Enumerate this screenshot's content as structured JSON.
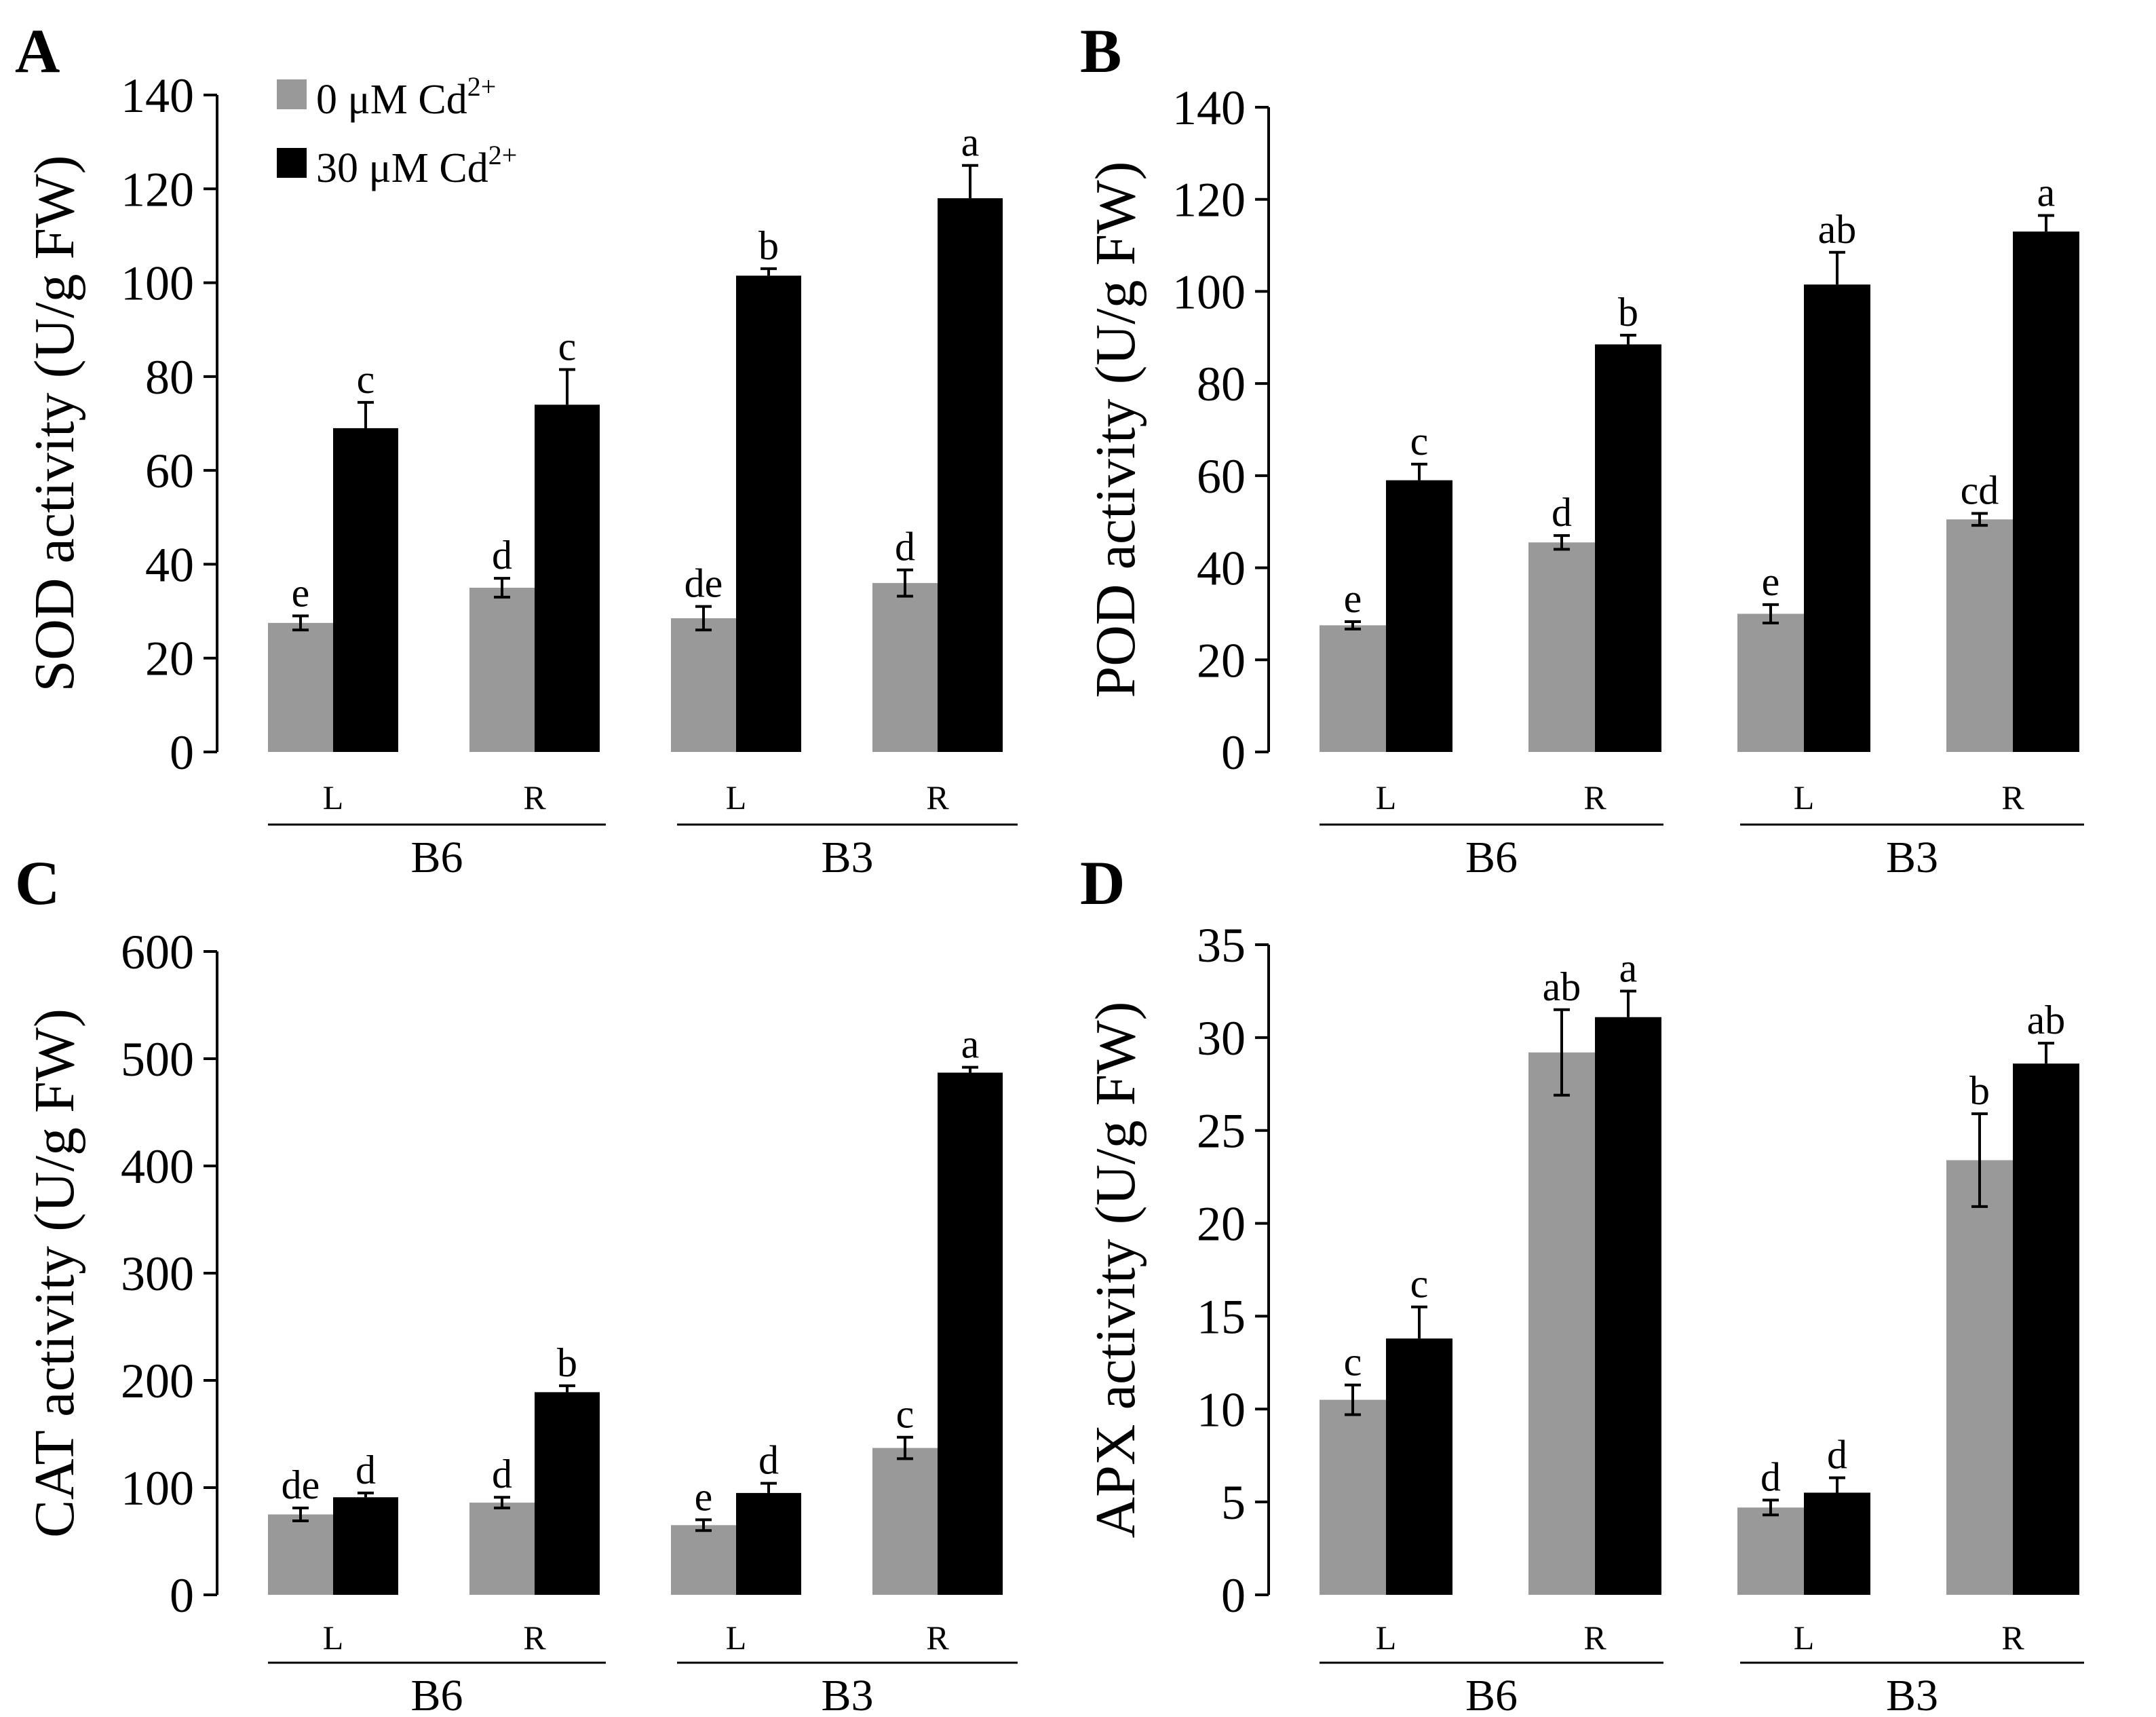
{
  "legend": {
    "items": [
      {
        "text": "0 μM Cd",
        "sup": "2+",
        "color": "#999999"
      },
      {
        "text": "30 μM Cd",
        "sup": "2+",
        "color": "#000000"
      }
    ]
  },
  "chart_data": [
    {
      "panel": "A",
      "type": "bar",
      "ylabel": "SOD activity (U/g FW)",
      "ylim": [
        0,
        140
      ],
      "yticks": [
        0,
        20,
        40,
        60,
        80,
        100,
        120,
        140
      ],
      "categories": [
        "L",
        "R",
        "L",
        "R"
      ],
      "groups": [
        {
          "label": "B6",
          "categories": [
            0,
            1
          ]
        },
        {
          "label": "B3",
          "categories": [
            2,
            3
          ]
        }
      ],
      "series": [
        {
          "name": "0 μM Cd2+",
          "color": "#999999",
          "values": [
            27.5,
            35,
            28.5,
            36
          ],
          "errors": [
            1.5,
            2,
            2.5,
            2.8
          ],
          "labels": [
            "e",
            "d",
            "de",
            "d"
          ]
        },
        {
          "name": "30 μM Cd2+",
          "color": "#000000",
          "values": [
            69,
            74,
            101.5,
            118
          ],
          "errors": [
            5.5,
            7.5,
            1.5,
            7
          ],
          "labels": [
            "c",
            "c",
            "b",
            "a"
          ]
        }
      ]
    },
    {
      "panel": "B",
      "type": "bar",
      "ylabel": "POD activity (U/g FW)",
      "ylim": [
        0,
        140
      ],
      "yticks": [
        0,
        20,
        40,
        60,
        80,
        100,
        120,
        140
      ],
      "categories": [
        "L",
        "R",
        "L",
        "R"
      ],
      "groups": [
        {
          "label": "B6",
          "categories": [
            0,
            1
          ]
        },
        {
          "label": "B3",
          "categories": [
            2,
            3
          ]
        }
      ],
      "series": [
        {
          "name": "0 μM Cd2+",
          "color": "#999999",
          "values": [
            27.5,
            45.5,
            30,
            50.5
          ],
          "errors": [
            0.8,
            1.5,
            2,
            1.3
          ],
          "labels": [
            "e",
            "d",
            "e",
            "cd"
          ]
        },
        {
          "name": "30 μM Cd2+",
          "color": "#000000",
          "values": [
            59,
            88.5,
            101.5,
            113
          ],
          "errors": [
            3.5,
            2,
            7,
            3.5
          ],
          "labels": [
            "c",
            "b",
            "ab",
            "a"
          ]
        }
      ]
    },
    {
      "panel": "C",
      "type": "bar",
      "ylabel": "CAT activity (U/g FW)",
      "ylim": [
        0,
        600
      ],
      "yticks": [
        0,
        100,
        200,
        300,
        400,
        500,
        600
      ],
      "categories": [
        "L",
        "R",
        "L",
        "R"
      ],
      "groups": [
        {
          "label": "B6",
          "categories": [
            0,
            1
          ]
        },
        {
          "label": "B3",
          "categories": [
            2,
            3
          ]
        }
      ],
      "series": [
        {
          "name": "0 μM Cd2+",
          "color": "#999999",
          "values": [
            75,
            86,
            65,
            137
          ],
          "errors": [
            6,
            5,
            5,
            10
          ],
          "labels": [
            "de",
            "d",
            "e",
            "c"
          ]
        },
        {
          "name": "30 μM Cd2+",
          "color": "#000000",
          "values": [
            91,
            189,
            95,
            487
          ],
          "errors": [
            4,
            6,
            9,
            5
          ],
          "labels": [
            "d",
            "b",
            "d",
            "a"
          ]
        }
      ]
    },
    {
      "panel": "D",
      "type": "bar",
      "ylabel": "APX activity (U/g FW)",
      "ylim": [
        0,
        35
      ],
      "yticks": [
        0,
        5,
        10,
        15,
        20,
        25,
        30,
        35
      ],
      "categories": [
        "L",
        "R",
        "L",
        "R"
      ],
      "groups": [
        {
          "label": "B6",
          "categories": [
            0,
            1
          ]
        },
        {
          "label": "B3",
          "categories": [
            2,
            3
          ]
        }
      ],
      "series": [
        {
          "name": "0 μM Cd2+",
          "color": "#999999",
          "values": [
            10.5,
            29.2,
            4.7,
            23.4
          ],
          "errors": [
            0.8,
            2.3,
            0.4,
            2.5
          ],
          "labels": [
            "c",
            "ab",
            "d",
            "b"
          ]
        },
        {
          "name": "30 μM Cd2+",
          "color": "#000000",
          "values": [
            13.8,
            31.1,
            5.5,
            28.6
          ],
          "errors": [
            1.7,
            1.4,
            0.8,
            1.1
          ],
          "labels": [
            "c",
            "a",
            "d",
            "ab"
          ]
        }
      ]
    }
  ]
}
